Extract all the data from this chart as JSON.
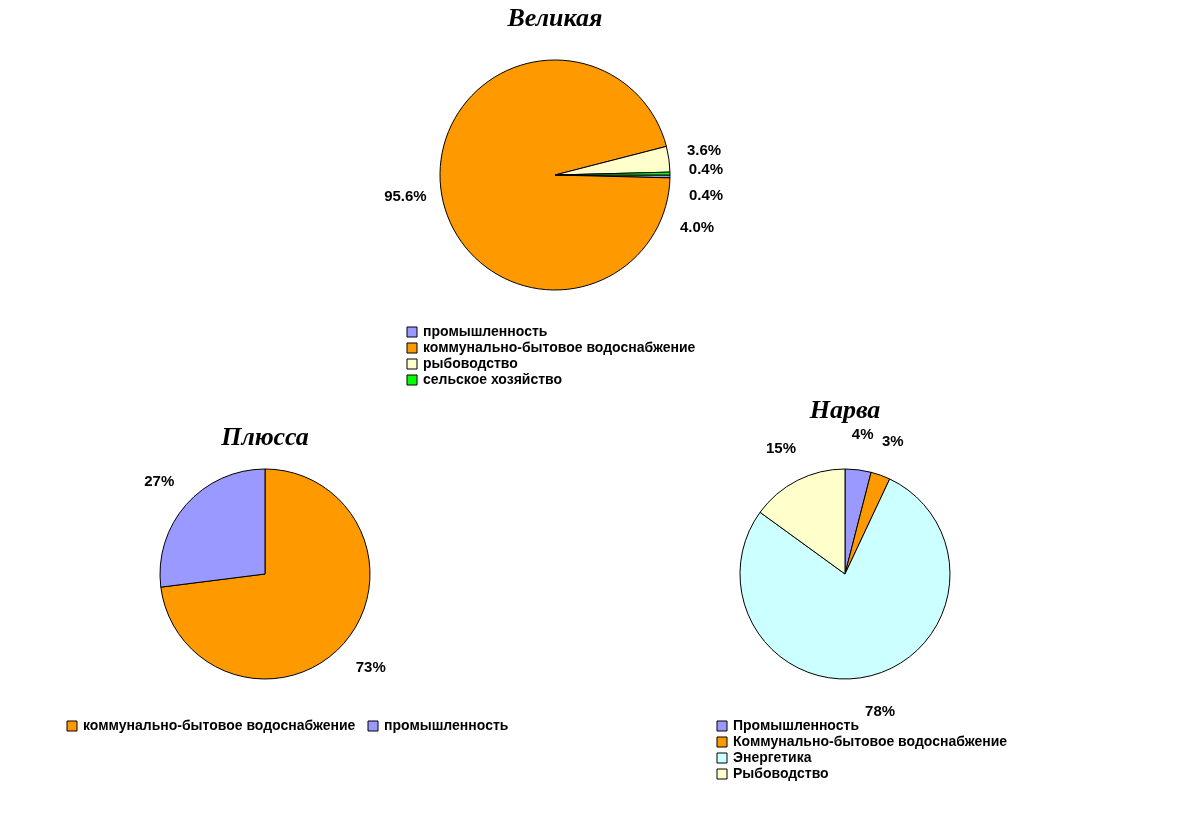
{
  "chart_data": [
    {
      "type": "pie",
      "title": "Великая",
      "categories": [
        "промышленность",
        "коммунально-бытовое водоснабжение",
        "рыбоводство",
        "сельское хозяйство"
      ],
      "values": [
        0.4,
        95.6,
        3.6,
        0.4
      ],
      "colors": [
        "#9999ff",
        "#ff9900",
        "#ffffcc",
        "#00ff00"
      ],
      "value_labels": [
        "0.4%",
        "95.6%",
        "3.6%",
        "0.4%"
      ],
      "annotations": [
        "4.0%"
      ],
      "legend": "bottom"
    },
    {
      "type": "pie",
      "title": "Плюсса",
      "categories": [
        "коммунально-бытовое водоснабжение",
        "промышленность"
      ],
      "values": [
        73,
        27
      ],
      "colors": [
        "#ff9900",
        "#9999ff"
      ],
      "value_labels": [
        "73%",
        "27%"
      ],
      "legend": "bottom"
    },
    {
      "type": "pie",
      "title": "Нарва",
      "categories": [
        "Промышленность",
        "Коммунально-бытовое водоснабжение",
        "Энергетика",
        "Рыбоводство"
      ],
      "values": [
        4,
        3,
        78,
        15
      ],
      "colors": [
        "#9999ff",
        "#ff9900",
        "#ccffff",
        "#ffffcc"
      ],
      "value_labels": [
        "4%",
        "3%",
        "78%",
        "15%"
      ],
      "legend": "bottom"
    }
  ]
}
